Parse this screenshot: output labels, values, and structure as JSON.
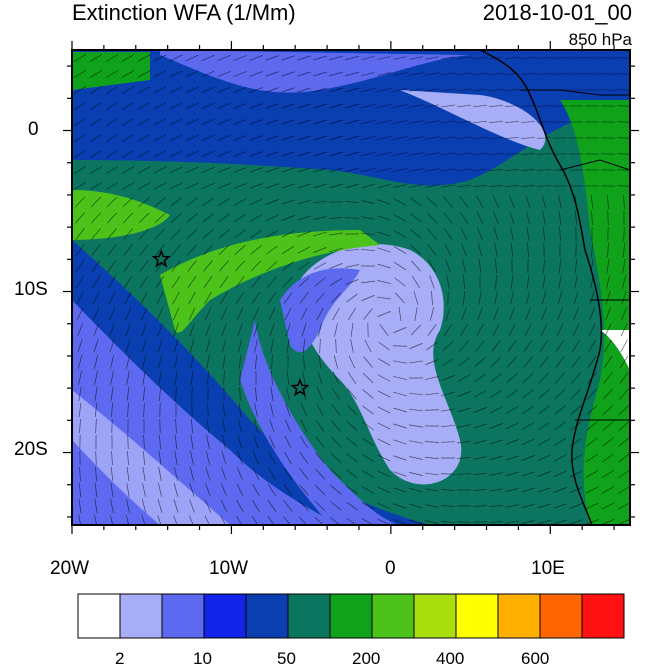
{
  "header": {
    "title": "Extinction WFA (1/Mm)",
    "datetime": "2018-10-01_00",
    "level": "850 hPa"
  },
  "map": {
    "lon_labels": [
      "20W",
      "10W",
      "0",
      "10E"
    ],
    "lat_labels": [
      "0",
      "10S",
      "20S"
    ],
    "lon_range": [
      -20,
      15
    ],
    "lat_range": [
      -24.5,
      5
    ],
    "stations": [
      {
        "lon": -14.4,
        "lat": -8.0
      },
      {
        "lon": -5.7,
        "lat": -16.0
      }
    ]
  },
  "colorbar": {
    "labels": [
      "2",
      "10",
      "50",
      "200",
      "400",
      "600"
    ],
    "colors": [
      "#ffffff",
      "#a8adf8",
      "#5d6af0",
      "#1224e8",
      "#0a3fb2",
      "#0b7560",
      "#10a21a",
      "#4cc21a",
      "#a9df0c",
      "#ffff00",
      "#ffaf00",
      "#ff6600",
      "#ff1111"
    ]
  },
  "colors": {
    "land": "#10a21a",
    "ocean_dark": "#0a3fb2",
    "plume": "#0b7560"
  }
}
